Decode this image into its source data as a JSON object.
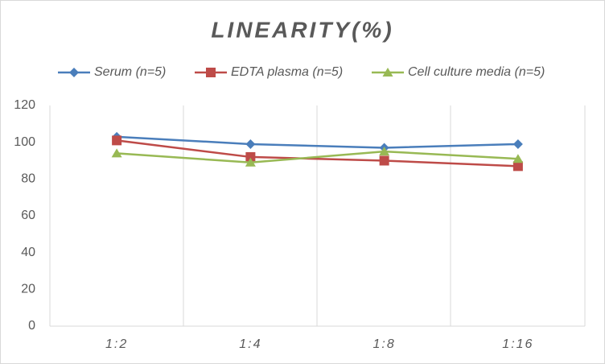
{
  "chart_data": {
    "type": "line",
    "title": "LINEARITY(%)",
    "categories": [
      "1:2",
      "1:4",
      "1:8",
      "1:16"
    ],
    "series": [
      {
        "name": "Serum (n=5)",
        "color": "#4a7ebb",
        "marker": "diamond",
        "values": [
          103,
          99,
          97,
          99
        ]
      },
      {
        "name": "EDTA plasma (n=5)",
        "color": "#be4b48",
        "marker": "square",
        "values": [
          101,
          92,
          90,
          87
        ]
      },
      {
        "name": "Cell culture media (n=5)",
        "color": "#98b954",
        "marker": "triangle",
        "values": [
          94,
          89,
          95,
          91
        ]
      }
    ],
    "ylim": [
      0,
      120
    ],
    "yticks": [
      0,
      20,
      40,
      60,
      80,
      100,
      120
    ],
    "legend": "top"
  }
}
